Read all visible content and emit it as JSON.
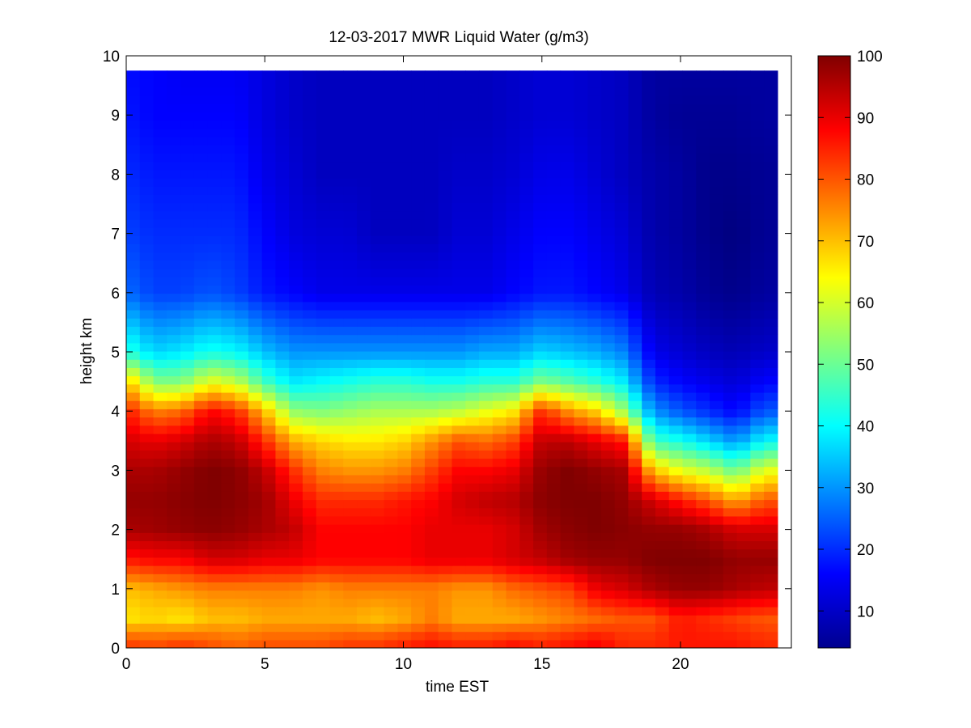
{
  "figure": {
    "title": "12-03-2017 MWR Liquid Water (g/m3)",
    "xlabel": "time EST",
    "ylabel": "height km",
    "xticks": [
      "0",
      "5",
      "10",
      "15",
      "20"
    ],
    "yticks": [
      "0",
      "1",
      "2",
      "3",
      "4",
      "5",
      "6",
      "7",
      "8",
      "9",
      "10"
    ],
    "colorbar_ticks": [
      "10",
      "20",
      "30",
      "40",
      "50",
      "60",
      "70",
      "80",
      "90",
      "100"
    ]
  },
  "chart_data": {
    "type": "heatmap",
    "title": "12-03-2017 MWR Liquid Water (g/m3)",
    "xlabel": "time EST",
    "ylabel": "height km",
    "xlim": [
      0,
      24
    ],
    "ylim": [
      0,
      10
    ],
    "data_x_range": [
      0,
      23.5
    ],
    "data_y_max": 9.75,
    "colormap": "jet",
    "clim": [
      4,
      100
    ],
    "colorbar_ticks": [
      10,
      20,
      30,
      40,
      50,
      60,
      70,
      80,
      90,
      100
    ],
    "grid": false,
    "time_EST": [
      0,
      1,
      2,
      3,
      4,
      5,
      6,
      7,
      8,
      9,
      10,
      11,
      12,
      13,
      14,
      15,
      16,
      17,
      18,
      19,
      20,
      21,
      22,
      23
    ],
    "height_km": [
      0.1,
      0.5,
      1.0,
      1.5,
      2.0,
      2.5,
      3.0,
      3.5,
      4.0,
      4.5,
      5.0,
      6.0,
      7.0,
      8.0,
      9.0,
      9.75
    ],
    "liquid_water": [
      [
        82,
        80,
        82,
        80,
        78,
        80,
        80,
        80,
        82,
        82,
        84,
        86,
        84,
        84,
        86,
        84,
        86,
        88,
        84,
        84,
        86,
        86,
        86,
        84
      ],
      [
        66,
        68,
        66,
        70,
        70,
        72,
        72,
        72,
        72,
        70,
        72,
        76,
        72,
        72,
        72,
        74,
        76,
        78,
        80,
        80,
        86,
        84,
        82,
        80
      ],
      [
        70,
        72,
        74,
        76,
        76,
        76,
        76,
        74,
        76,
        76,
        76,
        76,
        74,
        74,
        78,
        80,
        82,
        90,
        92,
        96,
        98,
        98,
        96,
        94
      ],
      [
        86,
        88,
        88,
        92,
        92,
        90,
        90,
        88,
        88,
        88,
        88,
        90,
        90,
        90,
        92,
        94,
        97,
        98,
        98,
        100,
        100,
        100,
        98,
        98
      ],
      [
        96,
        97,
        98,
        99,
        98,
        96,
        94,
        88,
        88,
        88,
        88,
        90,
        90,
        90,
        92,
        97,
        99,
        100,
        99,
        98,
        98,
        96,
        92,
        92
      ],
      [
        98,
        98,
        99,
        100,
        99,
        97,
        90,
        84,
        84,
        84,
        86,
        88,
        92,
        94,
        95,
        99,
        100,
        100,
        98,
        92,
        86,
        80,
        72,
        80
      ],
      [
        96,
        96,
        98,
        100,
        99,
        94,
        84,
        76,
        74,
        74,
        76,
        82,
        88,
        88,
        90,
        98,
        100,
        98,
        96,
        70,
        62,
        58,
        50,
        62
      ],
      [
        92,
        90,
        92,
        96,
        94,
        84,
        72,
        68,
        66,
        66,
        68,
        74,
        80,
        78,
        82,
        94,
        94,
        90,
        86,
        46,
        42,
        36,
        30,
        40
      ],
      [
        86,
        76,
        78,
        88,
        84,
        70,
        54,
        52,
        54,
        56,
        56,
        56,
        58,
        62,
        66,
        84,
        74,
        68,
        54,
        30,
        24,
        20,
        16,
        24
      ],
      [
        70,
        52,
        52,
        62,
        58,
        46,
        38,
        40,
        42,
        44,
        44,
        42,
        42,
        44,
        44,
        52,
        48,
        44,
        38,
        20,
        16,
        14,
        12,
        16
      ],
      [
        44,
        36,
        38,
        42,
        40,
        34,
        30,
        30,
        30,
        30,
        30,
        30,
        30,
        32,
        32,
        36,
        34,
        32,
        28,
        14,
        12,
        10,
        9,
        11
      ],
      [
        26,
        22,
        22,
        24,
        22,
        18,
        16,
        14,
        14,
        14,
        14,
        14,
        14,
        14,
        16,
        18,
        18,
        16,
        14,
        9,
        8,
        6,
        5,
        7
      ],
      [
        22,
        20,
        20,
        20,
        20,
        16,
        13,
        12,
        12,
        10,
        10,
        10,
        12,
        12,
        14,
        16,
        16,
        14,
        12,
        8,
        7,
        5,
        4,
        6
      ],
      [
        20,
        18,
        18,
        18,
        18,
        14,
        12,
        10,
        10,
        10,
        10,
        10,
        11,
        11,
        12,
        14,
        14,
        12,
        10,
        8,
        7,
        5,
        5,
        6
      ],
      [
        18,
        16,
        16,
        16,
        16,
        13,
        11,
        10,
        10,
        10,
        10,
        10,
        10,
        10,
        11,
        12,
        12,
        11,
        10,
        7,
        6,
        6,
        6,
        7
      ],
      [
        17,
        16,
        15,
        15,
        15,
        13,
        11,
        10,
        10,
        10,
        10,
        10,
        10,
        10,
        11,
        12,
        12,
        11,
        10,
        7,
        7,
        7,
        7,
        7
      ]
    ],
    "colorbar": {
      "min": 4,
      "max": 100
    }
  }
}
